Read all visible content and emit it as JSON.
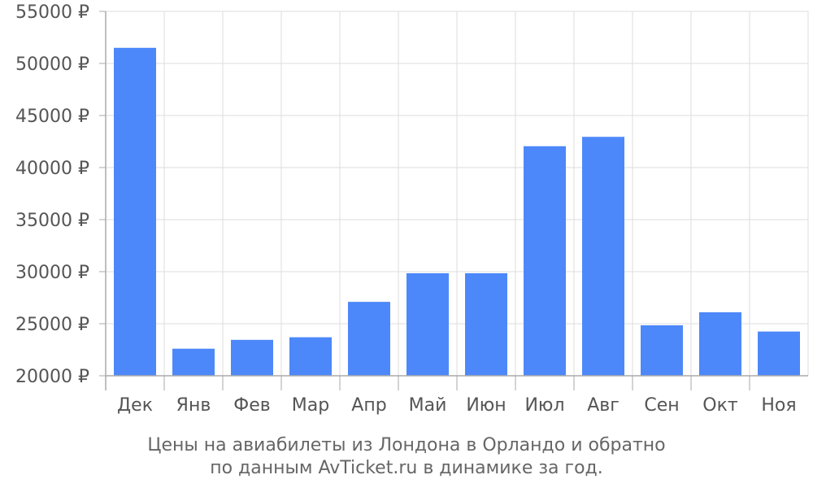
{
  "chart_data": {
    "type": "bar",
    "categories": [
      "Дек",
      "Янв",
      "Фев",
      "Мар",
      "Апр",
      "Май",
      "Июн",
      "Июл",
      "Авг",
      "Сен",
      "Окт",
      "Ноя"
    ],
    "values": [
      51500,
      22600,
      23450,
      23700,
      27100,
      29850,
      29850,
      42050,
      42950,
      24850,
      26100,
      24250
    ],
    "ylim": [
      20000,
      55000
    ],
    "yticks": [
      20000,
      25000,
      30000,
      35000,
      40000,
      45000,
      50000,
      55000
    ],
    "ytick_labels": [
      "20000 ₽",
      "25000 ₽",
      "30000 ₽",
      "35000 ₽",
      "40000 ₽",
      "45000 ₽",
      "50000 ₽",
      "55000 ₽"
    ],
    "bar_color": "#4d88fa",
    "grid": true,
    "caption_line1": "Цены на авиабилеты из Лондона в Орландо и обратно",
    "caption_line2": "по данным AvTicket.ru в динамике за год."
  }
}
